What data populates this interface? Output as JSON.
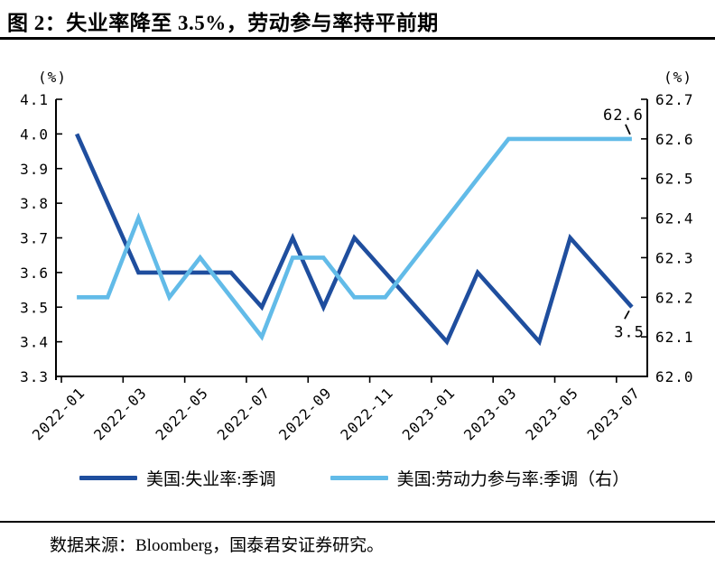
{
  "page": {
    "title": "图 2：失业率降至 3.5%，劳动参与率持平前期",
    "source_note": "数据来源：Bloomberg，国泰君安证券研究。"
  },
  "chart_data": {
    "type": "line",
    "x": [
      "2022-01",
      "2022-02",
      "2022-03",
      "2022-04",
      "2022-05",
      "2022-06",
      "2022-07",
      "2022-08",
      "2022-09",
      "2022-10",
      "2022-11",
      "2022-12",
      "2023-01",
      "2023-02",
      "2023-03",
      "2023-04",
      "2023-05",
      "2023-06",
      "2023-07"
    ],
    "x_tick_labels": [
      "2022-01",
      "2022-03",
      "2022-05",
      "2022-07",
      "2022-09",
      "2022-11",
      "2023-01",
      "2023-03",
      "2023-05",
      "2023-07"
    ],
    "series": [
      {
        "key": "unemployment",
        "name": "美国:失业率:季调",
        "axis": "left",
        "color": "#1F4E9E",
        "values": [
          4.0,
          3.8,
          3.6,
          3.6,
          3.6,
          3.6,
          3.5,
          3.7,
          3.5,
          3.7,
          3.6,
          3.5,
          3.4,
          3.6,
          3.5,
          3.4,
          3.7,
          3.6,
          3.5
        ]
      },
      {
        "key": "participation",
        "name": "美国:劳动力参与率:季调（右）",
        "axis": "right",
        "color": "#62BBE8",
        "values": [
          62.2,
          62.2,
          62.4,
          62.2,
          62.3,
          62.2,
          62.1,
          62.3,
          62.3,
          62.2,
          62.2,
          62.3,
          62.4,
          62.5,
          62.6,
          62.6,
          62.6,
          62.6,
          62.6
        ]
      }
    ],
    "left_axis": {
      "unit": "(%)",
      "min": 3.3,
      "max": 4.1,
      "step": 0.1,
      "ticks": [
        "4.1",
        "4.0",
        "3.9",
        "3.8",
        "3.7",
        "3.6",
        "3.5",
        "3.4",
        "3.3"
      ]
    },
    "right_axis": {
      "unit": "(%)",
      "min": 62.0,
      "max": 62.7,
      "step": 0.1,
      "ticks": [
        "62.7",
        "62.6",
        "62.5",
        "62.4",
        "62.3",
        "62.2",
        "62.1",
        "62.0"
      ]
    },
    "annotations": [
      {
        "text": "62.6",
        "series": 1,
        "point": 18,
        "placement": "above"
      },
      {
        "text": "3.5",
        "series": 0,
        "point": 18,
        "placement": "below"
      }
    ],
    "grid": "off",
    "legend_position": "bottom"
  }
}
